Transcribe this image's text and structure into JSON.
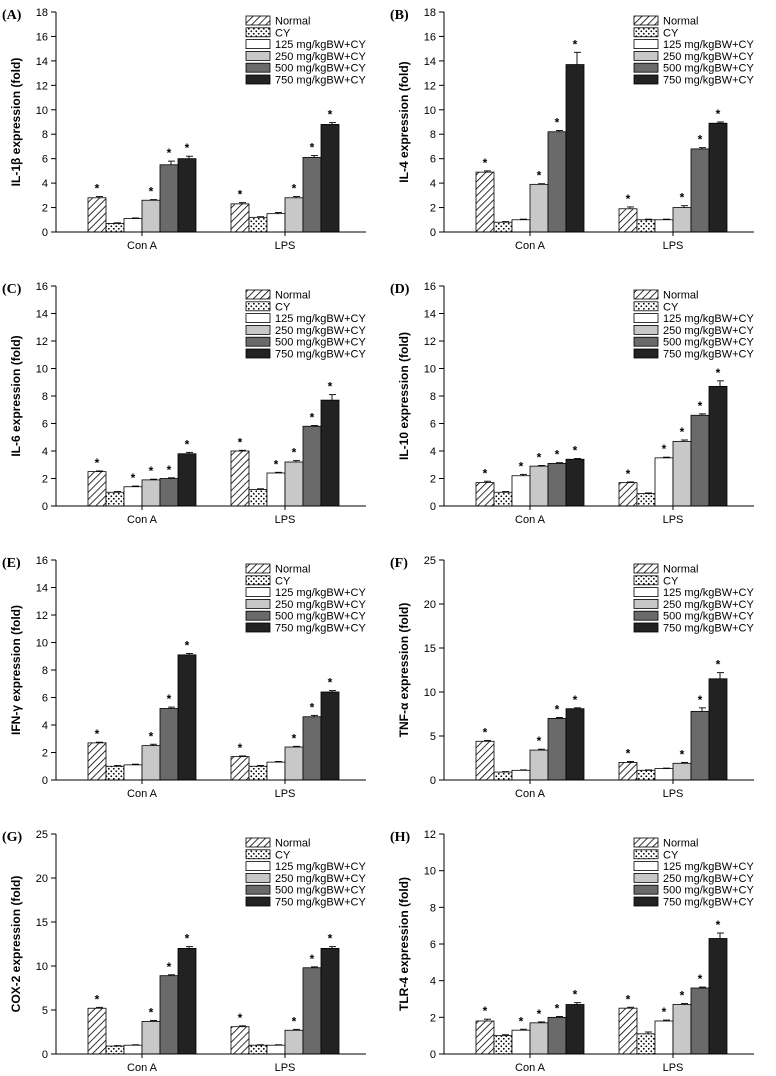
{
  "figure": {
    "categories": [
      "Con A",
      "LPS"
    ],
    "legend": [
      "Normal",
      "CY",
      "125 mg/kgBW+CY",
      "250 mg/kgBW+CY",
      "500 mg/kgBW+CY",
      "750 mg/kgBW+CY"
    ],
    "colors": [
      "#ffffff",
      "#ffffff",
      "#ffffff",
      "#c8c8c8",
      "#6a6a6a",
      "#222222"
    ],
    "patterns": [
      "hatch",
      "dots",
      "none",
      "none",
      "none",
      "none"
    ],
    "significance_marker": "*"
  },
  "chart_data": [
    {
      "type": "bar",
      "panel_label": "(A)",
      "ylabel": "IL-1β expression (fold)",
      "ylim": [
        0,
        18
      ],
      "yticks": [
        0,
        2,
        4,
        6,
        8,
        10,
        12,
        14,
        16,
        18
      ],
      "categories": [
        "Con A",
        "LPS"
      ],
      "series": [
        {
          "name": "Normal",
          "values": [
            2.8,
            2.3
          ],
          "errors": [
            0.1,
            0.1
          ],
          "sig": [
            true,
            true
          ]
        },
        {
          "name": "CY",
          "values": [
            0.7,
            1.2
          ],
          "errors": [
            0.05,
            0.05
          ],
          "sig": [
            false,
            false
          ]
        },
        {
          "name": "125 mg/kgBW+CY",
          "values": [
            1.1,
            1.5
          ],
          "errors": [
            0.05,
            0.1
          ],
          "sig": [
            false,
            false
          ]
        },
        {
          "name": "250 mg/kgBW+CY",
          "values": [
            2.6,
            2.8
          ],
          "errors": [
            0.05,
            0.1
          ],
          "sig": [
            true,
            true
          ]
        },
        {
          "name": "500 mg/kgBW+CY",
          "values": [
            5.5,
            6.1
          ],
          "errors": [
            0.3,
            0.15
          ],
          "sig": [
            true,
            true
          ]
        },
        {
          "name": "750 mg/kgBW+CY",
          "values": [
            6.0,
            8.8
          ],
          "errors": [
            0.2,
            0.15
          ],
          "sig": [
            true,
            true
          ]
        }
      ]
    },
    {
      "type": "bar",
      "panel_label": "(B)",
      "ylabel": "IL-4 expression (fold)",
      "ylim": [
        0,
        18
      ],
      "yticks": [
        0,
        2,
        4,
        6,
        8,
        10,
        12,
        14,
        16,
        18
      ],
      "categories": [
        "Con A",
        "LPS"
      ],
      "series": [
        {
          "name": "Normal",
          "values": [
            4.9,
            1.9
          ],
          "errors": [
            0.1,
            0.15
          ],
          "sig": [
            true,
            true
          ]
        },
        {
          "name": "CY",
          "values": [
            0.8,
            1.0
          ],
          "errors": [
            0.05,
            0.05
          ],
          "sig": [
            false,
            false
          ]
        },
        {
          "name": "125 mg/kgBW+CY",
          "values": [
            1.0,
            1.0
          ],
          "errors": [
            0.05,
            0.05
          ],
          "sig": [
            false,
            false
          ]
        },
        {
          "name": "250 mg/kgBW+CY",
          "values": [
            3.9,
            2.0
          ],
          "errors": [
            0.05,
            0.15
          ],
          "sig": [
            true,
            true
          ]
        },
        {
          "name": "500 mg/kgBW+CY",
          "values": [
            8.2,
            6.8
          ],
          "errors": [
            0.1,
            0.1
          ],
          "sig": [
            true,
            true
          ]
        },
        {
          "name": "750 mg/kgBW+CY",
          "values": [
            13.7,
            8.9
          ],
          "errors": [
            1.0,
            0.1
          ],
          "sig": [
            true,
            true
          ]
        }
      ]
    },
    {
      "type": "bar",
      "panel_label": "(C)",
      "ylabel": "IL-6 expression (fold)",
      "ylim": [
        0,
        16
      ],
      "yticks": [
        0,
        2,
        4,
        6,
        8,
        10,
        12,
        14,
        16
      ],
      "categories": [
        "Con A",
        "LPS"
      ],
      "series": [
        {
          "name": "Normal",
          "values": [
            2.5,
            4.0
          ],
          "errors": [
            0.05,
            0.05
          ],
          "sig": [
            true,
            true
          ]
        },
        {
          "name": "CY",
          "values": [
            1.0,
            1.2
          ],
          "errors": [
            0.05,
            0.05
          ],
          "sig": [
            false,
            false
          ]
        },
        {
          "name": "125 mg/kgBW+CY",
          "values": [
            1.4,
            2.4
          ],
          "errors": [
            0.05,
            0.05
          ],
          "sig": [
            true,
            true
          ]
        },
        {
          "name": "250 mg/kgBW+CY",
          "values": [
            1.9,
            3.2
          ],
          "errors": [
            0.05,
            0.1
          ],
          "sig": [
            true,
            true
          ]
        },
        {
          "name": "500 mg/kgBW+CY",
          "values": [
            2.0,
            5.8
          ],
          "errors": [
            0.05,
            0.05
          ],
          "sig": [
            true,
            true
          ]
        },
        {
          "name": "750 mg/kgBW+CY",
          "values": [
            3.8,
            7.7
          ],
          "errors": [
            0.1,
            0.4
          ],
          "sig": [
            true,
            true
          ]
        }
      ]
    },
    {
      "type": "bar",
      "panel_label": "(D)",
      "ylabel": "IL-10 expression (fold)",
      "ylim": [
        0,
        16
      ],
      "yticks": [
        0,
        2,
        4,
        6,
        8,
        10,
        12,
        14,
        16
      ],
      "categories": [
        "Con A",
        "LPS"
      ],
      "series": [
        {
          "name": "Normal",
          "values": [
            1.7,
            1.7
          ],
          "errors": [
            0.1,
            0.05
          ],
          "sig": [
            true,
            true
          ]
        },
        {
          "name": "CY",
          "values": [
            1.0,
            0.9
          ],
          "errors": [
            0.05,
            0.05
          ],
          "sig": [
            false,
            false
          ]
        },
        {
          "name": "125 mg/kgBW+CY",
          "values": [
            2.2,
            3.5
          ],
          "errors": [
            0.1,
            0.05
          ],
          "sig": [
            true,
            true
          ]
        },
        {
          "name": "250 mg/kgBW+CY",
          "values": [
            2.9,
            4.7
          ],
          "errors": [
            0.05,
            0.1
          ],
          "sig": [
            true,
            true
          ]
        },
        {
          "name": "500 mg/kgBW+CY",
          "values": [
            3.1,
            6.6
          ],
          "errors": [
            0.05,
            0.1
          ],
          "sig": [
            true,
            true
          ]
        },
        {
          "name": "750 mg/kgBW+CY",
          "values": [
            3.4,
            8.7
          ],
          "errors": [
            0.05,
            0.4
          ],
          "sig": [
            true,
            true
          ]
        }
      ]
    },
    {
      "type": "bar",
      "panel_label": "(E)",
      "ylabel": "IFN-γ expression (fold)",
      "ylim": [
        0,
        16
      ],
      "yticks": [
        0,
        2,
        4,
        6,
        8,
        10,
        12,
        14,
        16
      ],
      "categories": [
        "Con A",
        "LPS"
      ],
      "series": [
        {
          "name": "Normal",
          "values": [
            2.7,
            1.7
          ],
          "errors": [
            0.05,
            0.05
          ],
          "sig": [
            true,
            true
          ]
        },
        {
          "name": "CY",
          "values": [
            1.0,
            1.0
          ],
          "errors": [
            0.05,
            0.05
          ],
          "sig": [
            false,
            false
          ]
        },
        {
          "name": "125 mg/kgBW+CY",
          "values": [
            1.1,
            1.3
          ],
          "errors": [
            0.05,
            0.05
          ],
          "sig": [
            false,
            false
          ]
        },
        {
          "name": "250 mg/kgBW+CY",
          "values": [
            2.5,
            2.4
          ],
          "errors": [
            0.1,
            0.05
          ],
          "sig": [
            true,
            true
          ]
        },
        {
          "name": "500 mg/kgBW+CY",
          "values": [
            5.2,
            4.6
          ],
          "errors": [
            0.1,
            0.1
          ],
          "sig": [
            true,
            true
          ]
        },
        {
          "name": "750 mg/kgBW+CY",
          "values": [
            9.1,
            6.4
          ],
          "errors": [
            0.1,
            0.1
          ],
          "sig": [
            true,
            true
          ]
        }
      ]
    },
    {
      "type": "bar",
      "panel_label": "(F)",
      "ylabel": "TNF-α expression (fold)",
      "ylim": [
        0,
        25
      ],
      "yticks": [
        0,
        5,
        10,
        15,
        20,
        25
      ],
      "categories": [
        "Con A",
        "LPS"
      ],
      "series": [
        {
          "name": "Normal",
          "values": [
            4.4,
            2.0
          ],
          "errors": [
            0.1,
            0.1
          ],
          "sig": [
            true,
            true
          ]
        },
        {
          "name": "CY",
          "values": [
            0.9,
            1.1
          ],
          "errors": [
            0.05,
            0.05
          ],
          "sig": [
            false,
            false
          ]
        },
        {
          "name": "125 mg/kgBW+CY",
          "values": [
            1.1,
            1.3
          ],
          "errors": [
            0.05,
            0.05
          ],
          "sig": [
            false,
            false
          ]
        },
        {
          "name": "250 mg/kgBW+CY",
          "values": [
            3.4,
            1.9
          ],
          "errors": [
            0.1,
            0.1
          ],
          "sig": [
            true,
            true
          ]
        },
        {
          "name": "500 mg/kgBW+CY",
          "values": [
            7.0,
            7.8
          ],
          "errors": [
            0.1,
            0.4
          ],
          "sig": [
            true,
            true
          ]
        },
        {
          "name": "750 mg/kgBW+CY",
          "values": [
            8.1,
            11.5
          ],
          "errors": [
            0.1,
            0.7
          ],
          "sig": [
            true,
            true
          ]
        }
      ]
    },
    {
      "type": "bar",
      "panel_label": "(G)",
      "ylabel": "COX-2 expression (fold)",
      "ylim": [
        0,
        25
      ],
      "yticks": [
        0,
        5,
        10,
        15,
        20,
        25
      ],
      "categories": [
        "Con A",
        "LPS"
      ],
      "series": [
        {
          "name": "Normal",
          "values": [
            5.2,
            3.1
          ],
          "errors": [
            0.1,
            0.1
          ],
          "sig": [
            true,
            true
          ]
        },
        {
          "name": "CY",
          "values": [
            0.9,
            1.0
          ],
          "errors": [
            0.05,
            0.05
          ],
          "sig": [
            false,
            false
          ]
        },
        {
          "name": "125 mg/kgBW+CY",
          "values": [
            1.0,
            1.0
          ],
          "errors": [
            0.05,
            0.05
          ],
          "sig": [
            false,
            false
          ]
        },
        {
          "name": "250 mg/kgBW+CY",
          "values": [
            3.7,
            2.7
          ],
          "errors": [
            0.1,
            0.1
          ],
          "sig": [
            true,
            true
          ]
        },
        {
          "name": "500 mg/kgBW+CY",
          "values": [
            8.9,
            9.8
          ],
          "errors": [
            0.1,
            0.1
          ],
          "sig": [
            true,
            true
          ]
        },
        {
          "name": "750 mg/kgBW+CY",
          "values": [
            12.0,
            12.0
          ],
          "errors": [
            0.2,
            0.2
          ],
          "sig": [
            true,
            true
          ]
        }
      ]
    },
    {
      "type": "bar",
      "panel_label": "(H)",
      "ylabel": "TLR-4 expression (fold)",
      "ylim": [
        0,
        12
      ],
      "yticks": [
        0,
        2,
        4,
        6,
        8,
        10,
        12
      ],
      "categories": [
        "Con A",
        "LPS"
      ],
      "series": [
        {
          "name": "Normal",
          "values": [
            1.8,
            2.5
          ],
          "errors": [
            0.1,
            0.05
          ],
          "sig": [
            true,
            true
          ]
        },
        {
          "name": "CY",
          "values": [
            1.0,
            1.1
          ],
          "errors": [
            0.05,
            0.1
          ],
          "sig": [
            false,
            false
          ]
        },
        {
          "name": "125 mg/kgBW+CY",
          "values": [
            1.3,
            1.8
          ],
          "errors": [
            0.05,
            0.05
          ],
          "sig": [
            true,
            true
          ]
        },
        {
          "name": "250 mg/kgBW+CY",
          "values": [
            1.7,
            2.7
          ],
          "errors": [
            0.05,
            0.05
          ],
          "sig": [
            true,
            true
          ]
        },
        {
          "name": "500 mg/kgBW+CY",
          "values": [
            2.0,
            3.6
          ],
          "errors": [
            0.05,
            0.05
          ],
          "sig": [
            true,
            true
          ]
        },
        {
          "name": "750 mg/kgBW+CY",
          "values": [
            2.7,
            6.3
          ],
          "errors": [
            0.1,
            0.3
          ],
          "sig": [
            true,
            true
          ]
        }
      ]
    }
  ]
}
